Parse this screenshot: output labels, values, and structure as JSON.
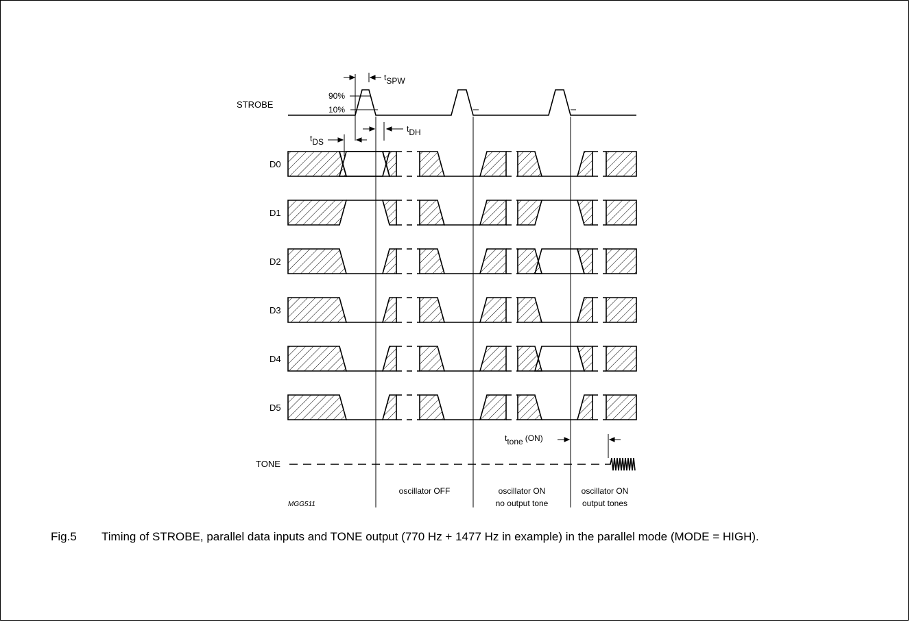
{
  "signals": [
    "STROBE",
    "D0",
    "D1",
    "D2",
    "D3",
    "D4",
    "D5",
    "TONE"
  ],
  "timing": {
    "t_spw": {
      "main": "t",
      "sub": "SPW"
    },
    "t_dh": {
      "main": "t",
      "sub": "DH"
    },
    "t_ds": {
      "main": "t",
      "sub": "DS"
    },
    "t_tone": {
      "main": "t",
      "sub": "tone",
      "suffix": "(ON)"
    }
  },
  "levels": {
    "pct90": "90%",
    "pct10": "10%"
  },
  "regions": [
    {
      "line1": "oscillator OFF",
      "line2": ""
    },
    {
      "line1": "oscillator ON",
      "line2": "no output tone"
    },
    {
      "line1": "oscillator ON",
      "line2": "output tones"
    }
  ],
  "figure_code": "MGG511",
  "caption": {
    "number": "Fig.5",
    "text": "Timing of STROBE, parallel data inputs and TONE output (770 Hz + 1477 Hz in example) in the parallel mode (MODE = HIGH)."
  }
}
